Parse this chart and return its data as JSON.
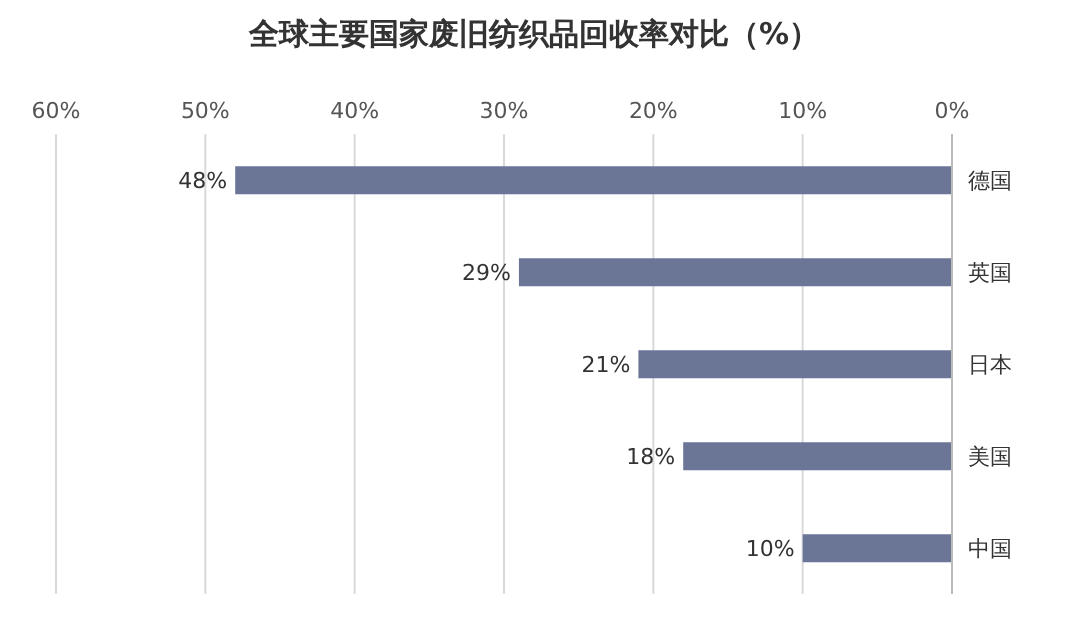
{
  "chart_data": {
    "type": "bar",
    "orientation": "horizontal",
    "title": "全球主要国家废旧纺织品回收率对比（%）",
    "categories": [
      "德国",
      "英国",
      "日本",
      "美国",
      "中国"
    ],
    "values": [
      48,
      29,
      21,
      18,
      10
    ],
    "value_labels": [
      "48%",
      "29%",
      "21%",
      "18%",
      "10%"
    ],
    "color": "#6b7596",
    "xlim": [
      60,
      0
    ],
    "xticks": [
      {
        "value": 0,
        "label": "0%"
      },
      {
        "value": 10,
        "label": "10%"
      },
      {
        "value": 20,
        "label": "20%"
      },
      {
        "value": 30,
        "label": "30%"
      },
      {
        "value": 40,
        "label": "40%"
      },
      {
        "value": 50,
        "label": "50%"
      },
      {
        "value": 60,
        "label": "60%"
      }
    ],
    "grid": "x"
  }
}
